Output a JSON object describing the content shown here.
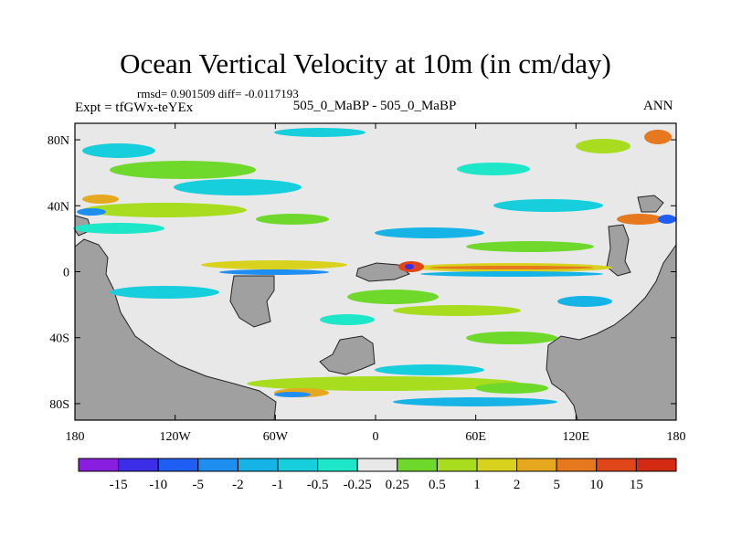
{
  "chart_data": {
    "type": "contour-map",
    "title": "Ocean Vertical Velocity at 10m (in cm/day)",
    "stats": "rmsd= 0.901509 diff= -0.0117193",
    "expt": "Expt = tfGWx-teYEx",
    "cases": "505_0_MaBP - 505_0_MaBP",
    "season": "ANN",
    "x_ticks": [
      "180",
      "120W",
      "60W",
      "0",
      "60E",
      "120E",
      "180"
    ],
    "y_ticks": [
      "80N",
      "40N",
      "0",
      "40S",
      "80S"
    ],
    "x_range": [
      -180,
      180
    ],
    "y_range": [
      -90,
      90
    ],
    "colorbar": {
      "labels": [
        "-15",
        "-10",
        "-5",
        "-2",
        "-1",
        "-0.5",
        "-0.25",
        "0.25",
        "0.5",
        "1",
        "2",
        "5",
        "10",
        "15"
      ],
      "colors": [
        "#8a1ee0",
        "#3c2ee6",
        "#1f5ef2",
        "#1e8ef0",
        "#16b4e6",
        "#17cfdc",
        "#1ee6c8",
        "#e8e8e8",
        "#6ed92a",
        "#a8dc1e",
        "#d8d21e",
        "#e6a81e",
        "#e6781e",
        "#e0461a",
        "#d42a14"
      ]
    },
    "land_color": "#a0a0a0"
  }
}
